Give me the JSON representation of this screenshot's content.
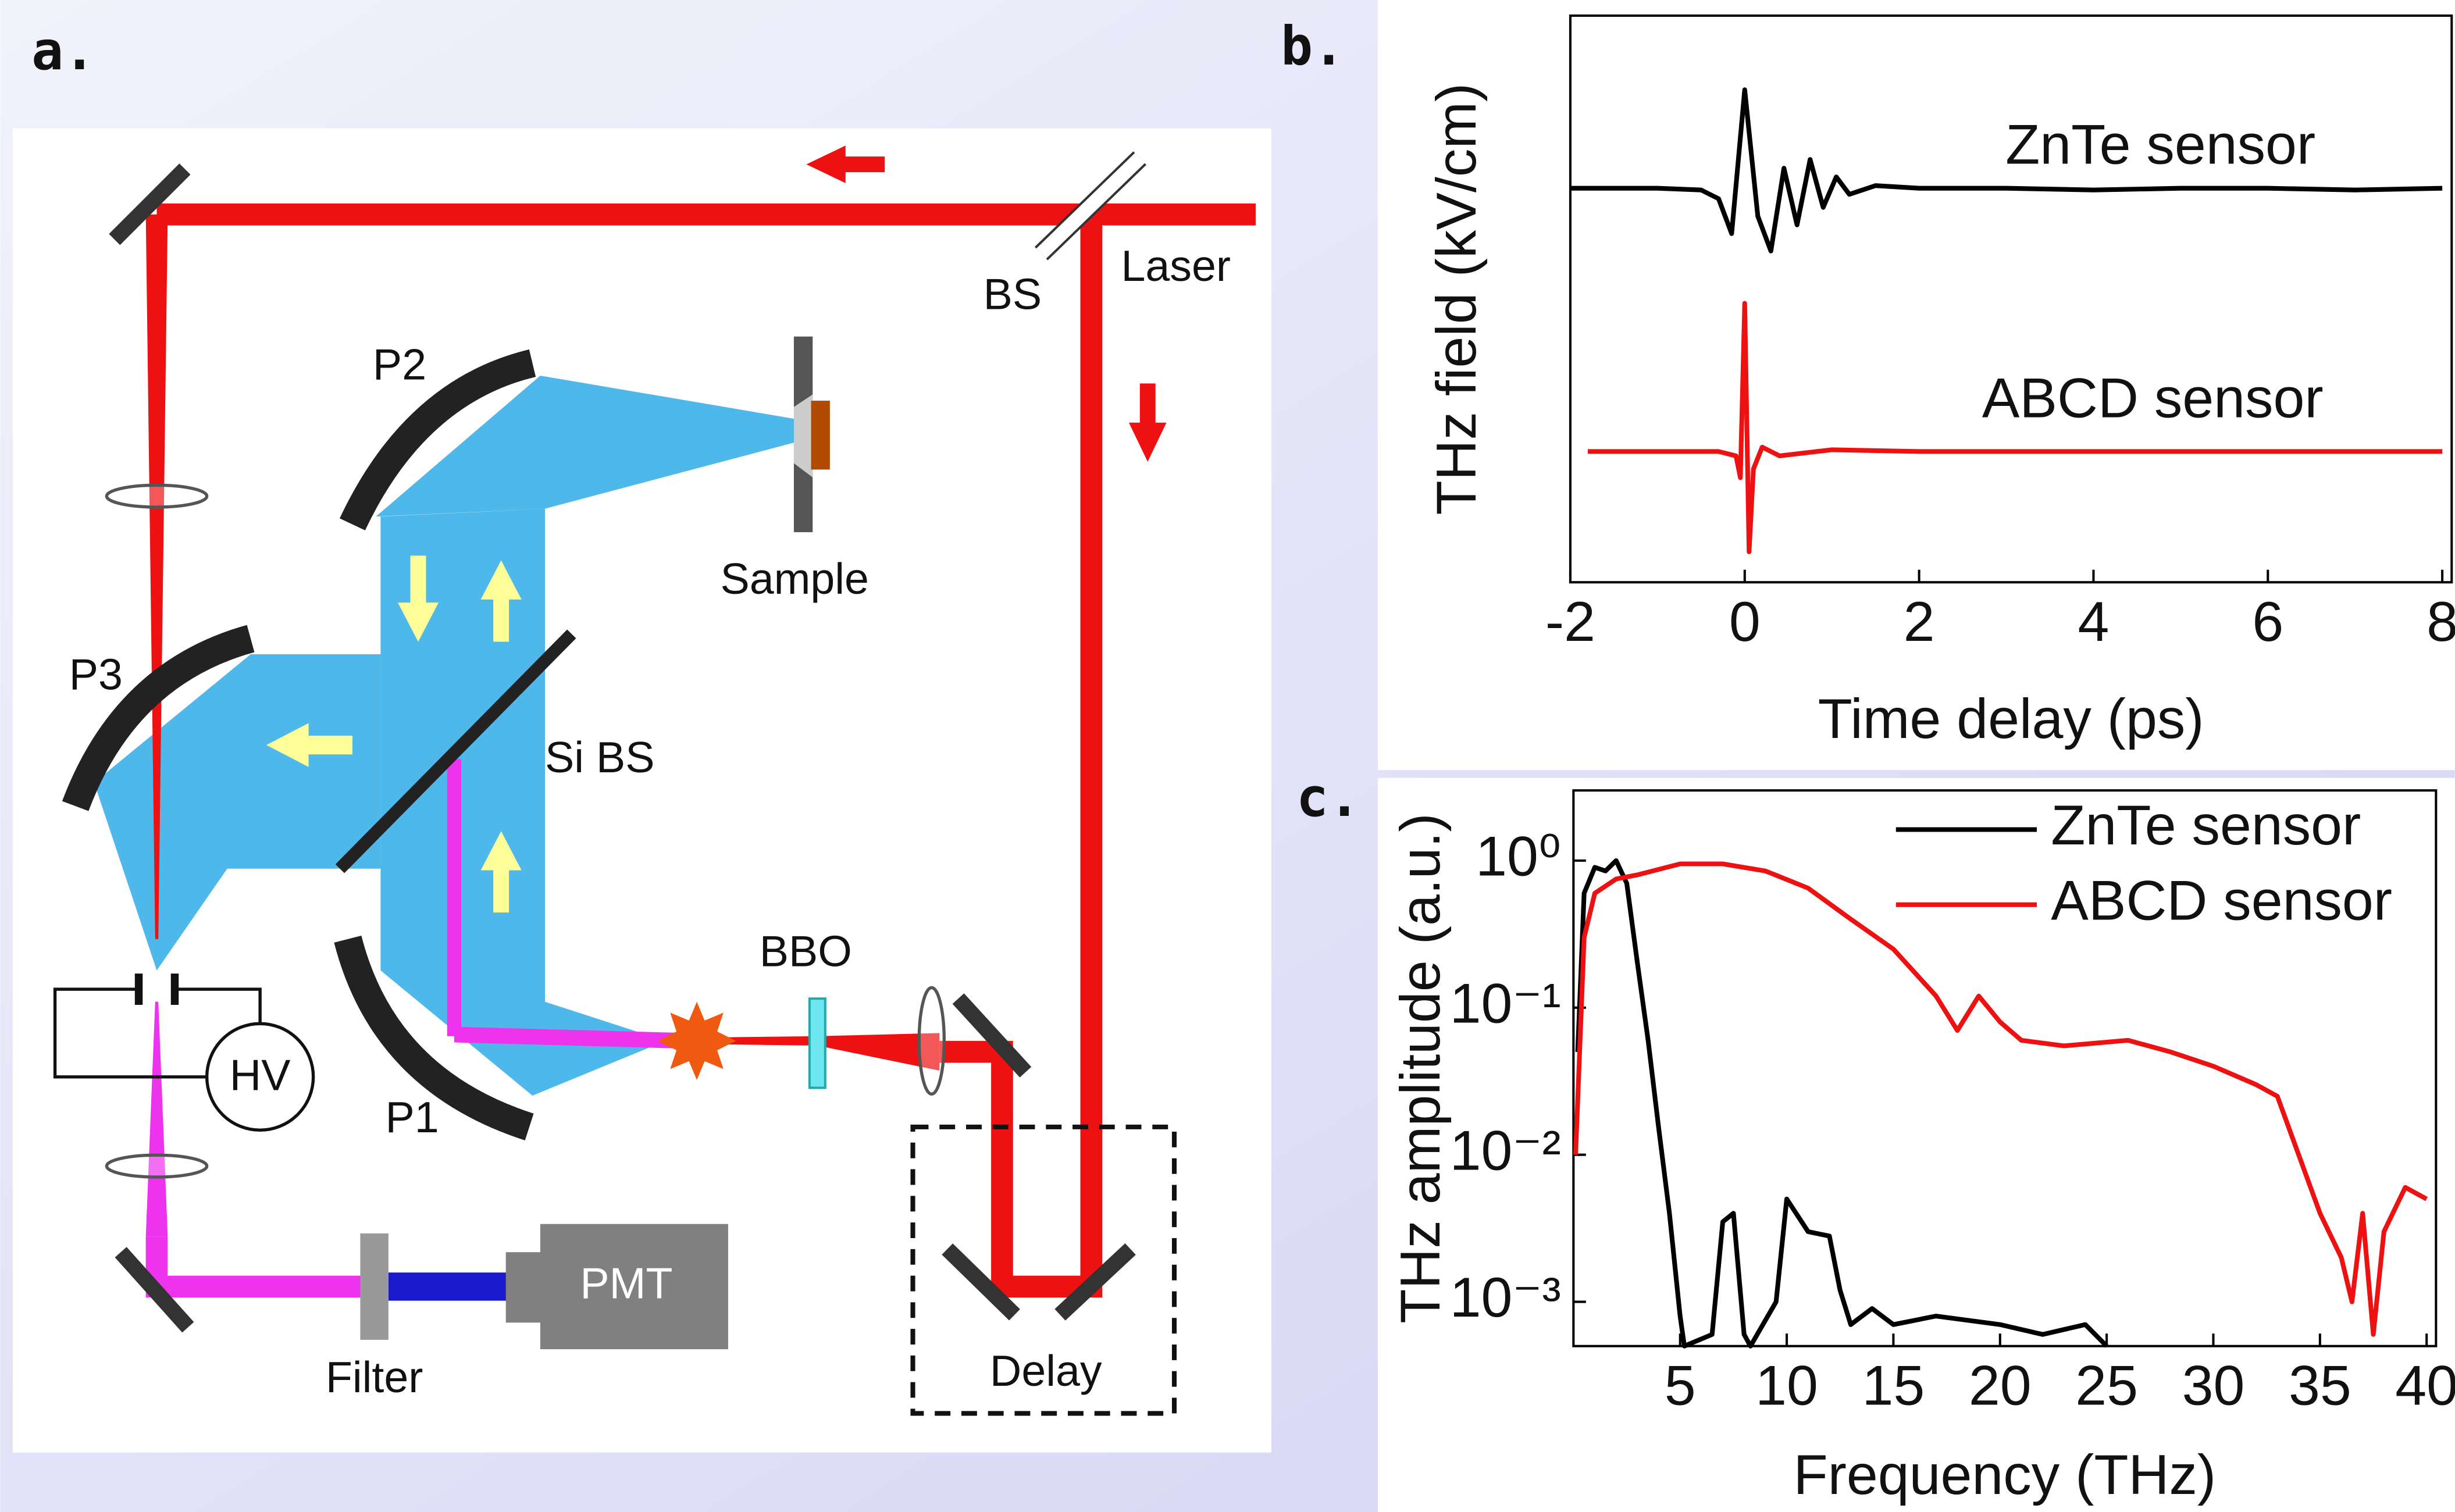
{
  "panel_labels": [
    "a.",
    "b.",
    "c."
  ],
  "diagram": {
    "labels": [
      "Laser",
      "BS",
      "P2",
      "Sample",
      "P3",
      "Si BS",
      "BBO",
      "HV",
      "P1",
      "PMT",
      "Filter",
      "Delay"
    ]
  },
  "chart_data": [
    {
      "type": "line",
      "xlabel": "Time delay (ps)",
      "ylabel": "THz field (kV/cm)",
      "xlim": [
        -2,
        8
      ],
      "xticks": [
        -2,
        0,
        2,
        4,
        6,
        8
      ],
      "ylim": [
        0,
        6.5
      ],
      "log_y": false,
      "grid": false,
      "annotations": [
        "ZnTe sensor",
        "ABCD sensor"
      ],
      "series": [
        {
          "name": "ZnTe sensor",
          "color": "#000000",
          "x": [
            -2,
            -1,
            -0.5,
            -0.3,
            -0.15,
            0,
            0.15,
            0.3,
            0.45,
            0.6,
            0.75,
            0.9,
            1.05,
            1.2,
            1.5,
            2,
            3,
            4,
            5,
            6,
            7,
            8
          ],
          "values": [
            4.52,
            4.52,
            4.5,
            4.4,
            4.0,
            5.65,
            4.2,
            3.8,
            4.75,
            4.1,
            4.85,
            4.3,
            4.65,
            4.45,
            4.55,
            4.52,
            4.52,
            4.5,
            4.52,
            4.52,
            4.5,
            4.52
          ]
        },
        {
          "name": "ABCD sensor",
          "color": "#ee1111",
          "x": [
            -1.8,
            -1,
            -0.3,
            -0.1,
            -0.05,
            0,
            0.05,
            0.1,
            0.2,
            0.4,
            1,
            2,
            4,
            6,
            8
          ],
          "values": [
            1.5,
            1.5,
            1.5,
            1.45,
            1.2,
            3.2,
            0.35,
            1.3,
            1.55,
            1.45,
            1.52,
            1.5,
            1.5,
            1.5,
            1.5
          ]
        }
      ]
    },
    {
      "type": "line",
      "xlabel": "Frequency (THz)",
      "ylabel": "THz amplitude (a.u.)",
      "xlim": [
        0,
        40
      ],
      "xticks": [
        5,
        10,
        15,
        20,
        25,
        30,
        35,
        40
      ],
      "ylim": [
        0.0005,
        3
      ],
      "log_y": true,
      "grid": false,
      "yticks": [
        {
          "value": 1,
          "label": "10⁰"
        },
        {
          "value": 0.1,
          "label": "10⁻¹"
        },
        {
          "value": 0.01,
          "label": "10⁻²"
        },
        {
          "value": 0.001,
          "label": "10⁻³"
        }
      ],
      "legend": "upper right",
      "series": [
        {
          "name": "ZnTe sensor",
          "color": "#000000",
          "x": [
            0.2,
            0.5,
            1,
            1.5,
            2,
            2.5,
            3,
            3.5,
            4,
            4.5,
            5,
            5.2,
            6.5,
            7,
            7.5,
            8,
            8.3,
            9.5,
            10,
            11,
            12,
            12.5,
            13,
            14,
            15,
            17,
            20,
            22,
            24,
            25
          ],
          "values": [
            0.05,
            0.6,
            0.9,
            0.85,
            1.0,
            0.7,
            0.2,
            0.06,
            0.015,
            0.004,
            0.0008,
            0.0005,
            0.0006,
            0.0035,
            0.004,
            0.0006,
            0.0005,
            0.001,
            0.005,
            0.003,
            0.0028,
            0.0012,
            0.0007,
            0.0009,
            0.0007,
            0.0008,
            0.0007,
            0.0006,
            0.0007,
            0.0005
          ]
        },
        {
          "name": "ABCD sensor",
          "color": "#ee1111",
          "x": [
            0.1,
            0.5,
            1,
            2,
            3,
            5,
            7,
            9,
            11,
            13,
            15,
            17,
            18,
            19,
            20,
            21,
            23,
            26,
            28,
            30,
            32,
            33,
            34,
            35,
            36,
            36.5,
            37,
            37.5,
            38,
            39,
            40
          ],
          "values": [
            0.01,
            0.3,
            0.6,
            0.75,
            0.8,
            0.95,
            0.95,
            0.85,
            0.65,
            0.4,
            0.25,
            0.12,
            0.07,
            0.12,
            0.08,
            0.06,
            0.055,
            0.06,
            0.05,
            0.04,
            0.03,
            0.025,
            0.01,
            0.004,
            0.002,
            0.001,
            0.004,
            0.0006,
            0.003,
            0.006,
            0.005
          ]
        }
      ]
    }
  ]
}
